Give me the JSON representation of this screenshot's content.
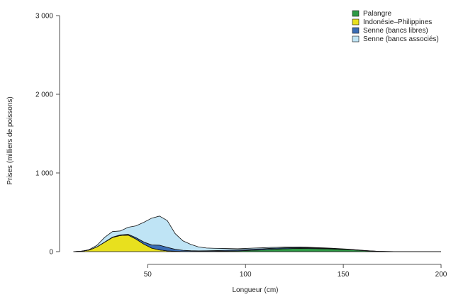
{
  "chart_data": {
    "type": "area",
    "stacked": true,
    "xlabel": "Longueur (cm)",
    "ylabel": "Prises (milliers de poissons)",
    "xlim": [
      10,
      200
    ],
    "ylim": [
      0,
      3000
    ],
    "xticks": [
      50,
      100,
      150,
      200
    ],
    "yticks": [
      0,
      1000,
      2000,
      3000
    ],
    "xtick_labels": [
      "50",
      "100",
      "150",
      "200"
    ],
    "ytick_labels": [
      "0",
      "1 000",
      "2 000",
      "3 000"
    ],
    "grid": false,
    "legend_position": "top-right",
    "x": [
      12,
      16,
      20,
      24,
      28,
      32,
      36,
      40,
      44,
      48,
      52,
      56,
      60,
      64,
      68,
      72,
      76,
      80,
      84,
      88,
      92,
      96,
      100,
      104,
      108,
      112,
      116,
      120,
      124,
      128,
      132,
      136,
      140,
      144,
      148,
      152,
      156,
      160,
      164,
      168,
      172,
      176,
      180,
      190,
      200
    ],
    "series": [
      {
        "name": "Indonésie–Philippines",
        "color": "#e8e01e",
        "values": [
          0,
          5,
          20,
          60,
          120,
          180,
          205,
          210,
          160,
          95,
          45,
          22,
          10,
          5,
          2,
          1,
          0,
          0,
          0,
          0,
          0,
          0,
          0,
          0,
          0,
          0,
          0,
          0,
          0,
          0,
          0,
          0,
          0,
          0,
          0,
          0,
          0,
          0,
          0,
          0,
          0,
          0,
          0,
          0,
          0
        ]
      },
      {
        "name": "Palangre",
        "color": "#2e9a45",
        "values": [
          0,
          0,
          0,
          0,
          0,
          0,
          0,
          0,
          0,
          0,
          0,
          0,
          0,
          0,
          0,
          1,
          2,
          3,
          4,
          6,
          8,
          10,
          14,
          18,
          22,
          28,
          32,
          36,
          40,
          42,
          40,
          38,
          36,
          34,
          30,
          26,
          20,
          14,
          8,
          4,
          2,
          1,
          0,
          0,
          0
        ]
      },
      {
        "name": "Senne (bancs libres)",
        "color": "#3a6db5",
        "values": [
          0,
          0,
          0,
          0,
          2,
          5,
          8,
          10,
          18,
          28,
          40,
          60,
          45,
          25,
          15,
          10,
          8,
          8,
          9,
          10,
          11,
          12,
          12,
          13,
          13,
          13,
          12,
          12,
          11,
          10,
          9,
          8,
          7,
          6,
          5,
          4,
          3,
          2,
          1,
          0,
          0,
          0,
          0,
          0,
          0
        ]
      },
      {
        "name": "Senne (bancs associés)",
        "color": "#bfe4f5",
        "values": [
          0,
          0,
          5,
          20,
          60,
          70,
          50,
          90,
          150,
          250,
          340,
          370,
          340,
          200,
          120,
          80,
          50,
          35,
          30,
          25,
          20,
          15,
          15,
          14,
          13,
          12,
          11,
          10,
          9,
          8,
          7,
          6,
          5,
          4,
          3,
          2,
          2,
          1,
          1,
          0,
          0,
          0,
          0,
          0,
          0
        ]
      }
    ]
  }
}
